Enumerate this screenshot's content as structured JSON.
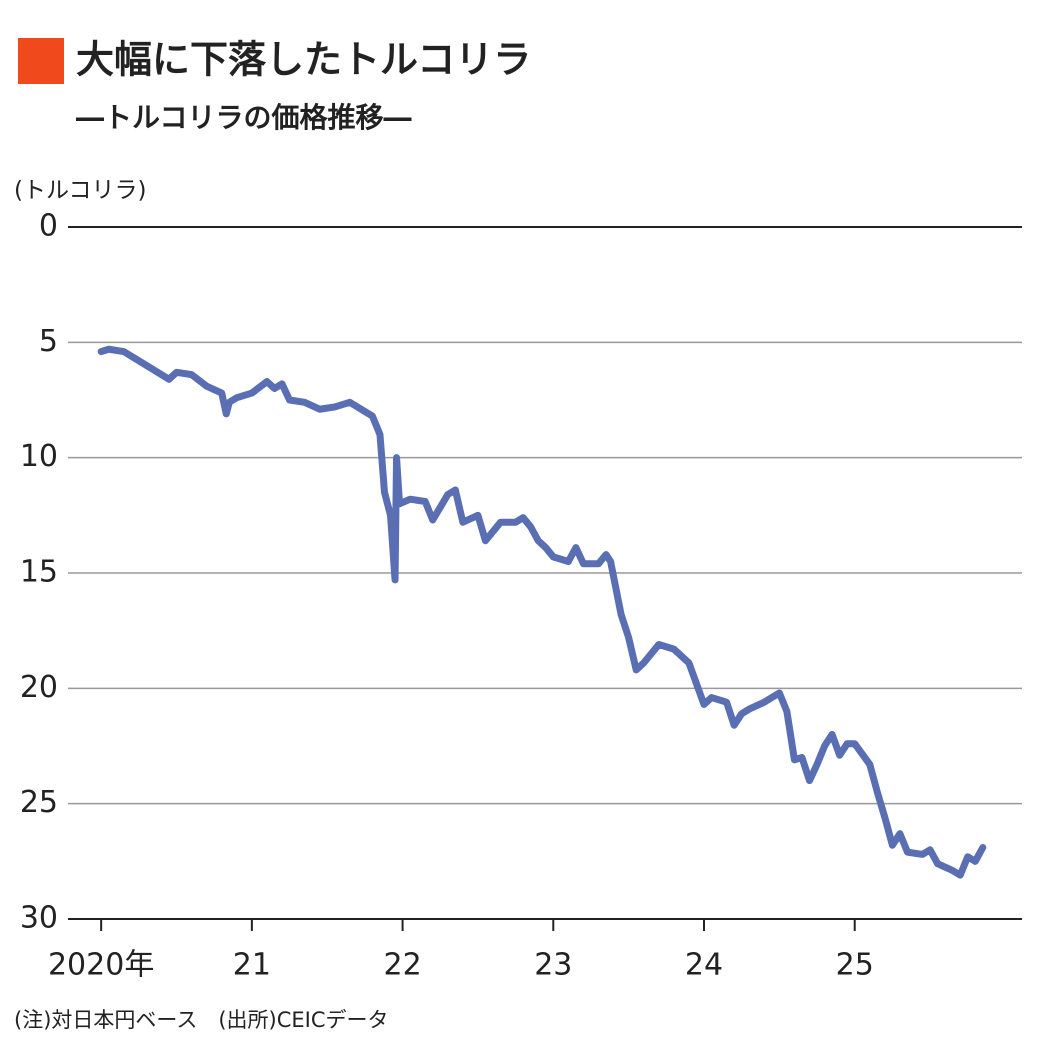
{
  "chart_data": {
    "type": "line",
    "title": "大幅に下落したトルコリラ",
    "subtitle": "―トルコリラの価格推移―",
    "y_label": "(トルコリラ)",
    "footnote": "(注)対日本円ベース　(出所)CEICデータ",
    "color": "#5a6fb3",
    "y_inverted": true,
    "grid": true,
    "ylim": [
      0,
      30
    ],
    "yticks": [
      0,
      5,
      10,
      15,
      20,
      25,
      30
    ],
    "xlim": [
      2019.78,
      2026.11
    ],
    "xticks": [
      {
        "value": 2020,
        "label": "2020年"
      },
      {
        "value": 2021,
        "label": "21"
      },
      {
        "value": 2022,
        "label": "22"
      },
      {
        "value": 2023,
        "label": "23"
      },
      {
        "value": 2024,
        "label": "24"
      },
      {
        "value": 2025,
        "label": "25"
      }
    ],
    "x": [
      2020.0,
      2020.05,
      2020.15,
      2020.25,
      2020.35,
      2020.45,
      2020.5,
      2020.6,
      2020.7,
      2020.8,
      2020.83,
      2020.85,
      2020.9,
      2021.0,
      2021.1,
      2021.15,
      2021.2,
      2021.25,
      2021.35,
      2021.45,
      2021.55,
      2021.65,
      2021.75,
      2021.8,
      2021.85,
      2021.88,
      2021.92,
      2021.95,
      2021.96,
      2021.98,
      2022.05,
      2022.15,
      2022.2,
      2022.3,
      2022.35,
      2022.4,
      2022.5,
      2022.55,
      2022.65,
      2022.75,
      2022.8,
      2022.85,
      2022.9,
      2022.95,
      2023.0,
      2023.1,
      2023.15,
      2023.2,
      2023.3,
      2023.35,
      2023.38,
      2023.45,
      2023.5,
      2023.55,
      2023.6,
      2023.7,
      2023.8,
      2023.9,
      2023.95,
      2024.0,
      2024.05,
      2024.15,
      2024.2,
      2024.25,
      2024.3,
      2024.4,
      2024.5,
      2024.55,
      2024.6,
      2024.65,
      2024.7,
      2024.75,
      2024.8,
      2024.85,
      2024.9,
      2024.95,
      2025.0,
      2025.1,
      2025.15,
      2025.2,
      2025.25,
      2025.3,
      2025.35,
      2025.45,
      2025.5,
      2025.55,
      2025.65,
      2025.7,
      2025.75,
      2025.8,
      2025.85
    ],
    "values": [
      5.4,
      5.3,
      5.4,
      5.8,
      6.2,
      6.6,
      6.3,
      6.4,
      6.9,
      7.2,
      8.1,
      7.6,
      7.4,
      7.2,
      6.7,
      7.0,
      6.8,
      7.5,
      7.6,
      7.9,
      7.8,
      7.6,
      8.0,
      8.2,
      9.0,
      11.5,
      12.5,
      15.3,
      10.0,
      12.0,
      11.8,
      11.9,
      12.7,
      11.6,
      11.4,
      12.8,
      12.5,
      13.6,
      12.8,
      12.8,
      12.6,
      13.0,
      13.6,
      13.9,
      14.3,
      14.5,
      13.9,
      14.6,
      14.6,
      14.2,
      14.5,
      16.8,
      17.8,
      19.2,
      18.9,
      18.1,
      18.3,
      18.9,
      19.8,
      20.7,
      20.4,
      20.6,
      21.6,
      21.1,
      20.9,
      20.6,
      20.2,
      21.0,
      23.1,
      23.0,
      24.0,
      23.3,
      22.5,
      22.0,
      22.9,
      22.4,
      22.4,
      23.3,
      24.5,
      25.6,
      26.8,
      26.3,
      27.1,
      27.2,
      27.0,
      27.6,
      27.9,
      28.1,
      27.3,
      27.5,
      26.9
    ]
  }
}
